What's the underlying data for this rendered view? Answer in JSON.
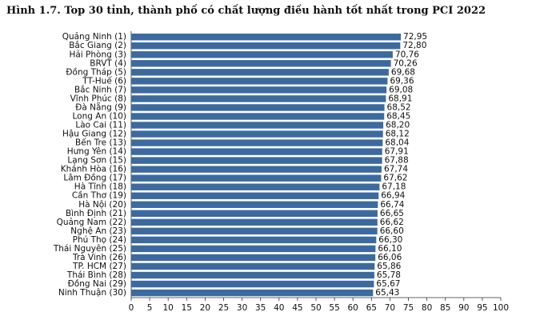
{
  "chart_data": {
    "type": "bar",
    "orientation": "horizontal",
    "title": "Hình 1.7. Top 30 tỉnh, thành phố có chất lượng điều hành tốt nhất trong PCI 2022",
    "categories": [
      "Quảng Ninh (1)",
      "Bắc Giang (2)",
      "Hải Phòng (3)",
      "BRVT (4)",
      "Đồng Tháp (5)",
      "TT-Huế (6)",
      "Bắc Ninh (7)",
      "Vĩnh Phúc (8)",
      "Đà Nẵng (9)",
      "Long An (10)",
      "Lào Cai (11)",
      "Hậu Giang (12)",
      "Bến Tre (13)",
      "Hưng Yên (14)",
      "Lạng Sơn (15)",
      "Khánh Hòa (16)",
      "Lâm Đồng (17)",
      "Hà Tĩnh (18)",
      "Cần Thơ (19)",
      "Hà Nội (20)",
      "Bình Định (21)",
      "Quảng Nam (22)",
      "Nghệ An (23)",
      "Phú Thọ (24)",
      "Thái Nguyên (25)",
      "Trà Vinh (26)",
      "TP. HCM (27)",
      "Thái Bình (28)",
      "Đồng Nai (29)",
      "Ninh Thuận (30)"
    ],
    "values": [
      72.95,
      72.8,
      70.76,
      70.26,
      69.68,
      69.36,
      69.08,
      68.91,
      68.52,
      68.45,
      68.2,
      68.12,
      68.04,
      67.91,
      67.88,
      67.74,
      67.62,
      67.18,
      66.94,
      66.74,
      66.65,
      66.62,
      66.6,
      66.3,
      66.1,
      66.06,
      65.86,
      65.78,
      65.67,
      65.43
    ],
    "value_labels": [
      "72,95",
      "72,80",
      "70,76",
      "70,26",
      "69,68",
      "69,36",
      "69,08",
      "68,91",
      "68,52",
      "68,45",
      "68,20",
      "68,12",
      "68,04",
      "67,91",
      "67,88",
      "67,74",
      "67,62",
      "67,18",
      "66,94",
      "66,74",
      "66,65",
      "66,62",
      "66,60",
      "66,30",
      "66,10",
      "66,06",
      "65,86",
      "65,78",
      "65,67",
      "65,43"
    ],
    "xlim": [
      0,
      100
    ],
    "xticks": [
      0,
      5,
      10,
      15,
      20,
      25,
      30,
      35,
      40,
      45,
      50,
      55,
      60,
      65,
      70,
      75,
      80,
      85,
      90,
      95,
      100
    ],
    "bar_color": "#3d6a9e",
    "grid": false
  }
}
